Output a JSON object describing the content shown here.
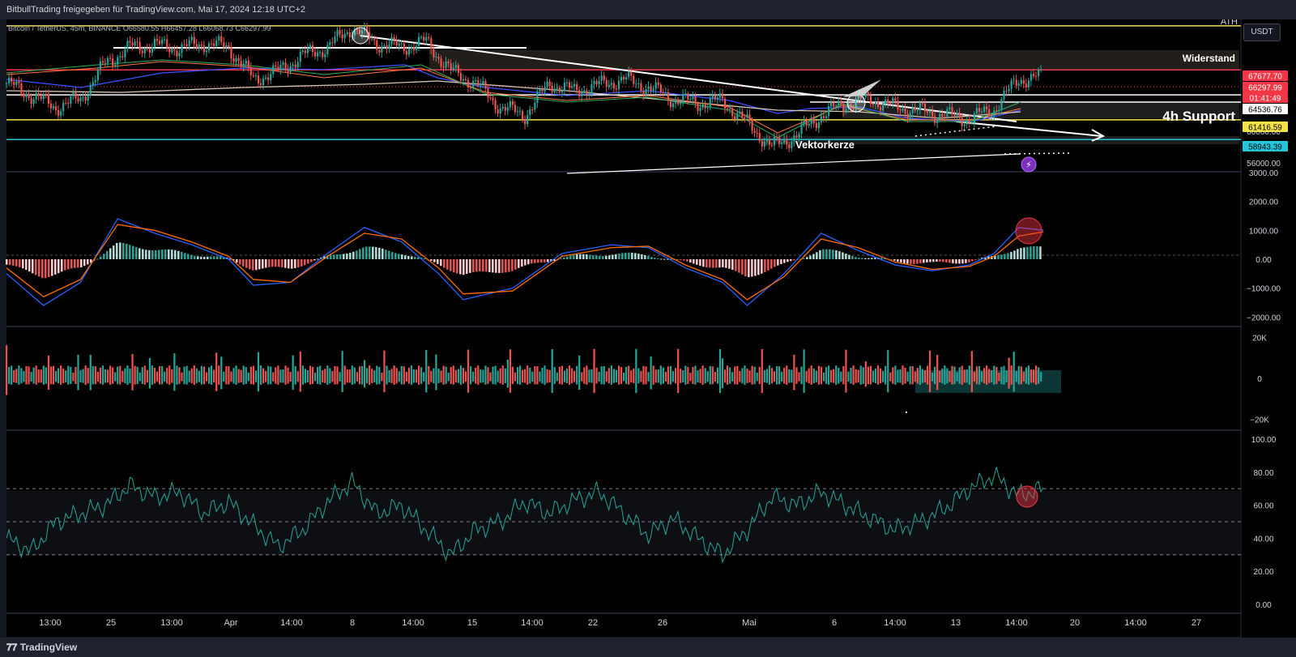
{
  "header": {
    "share_text": "BitbullTrading freigegeben für TradingView.com, Mai 17, 2024 12:18 UTC+2"
  },
  "footer": {
    "brand": "TradingView"
  },
  "currency_button": "USDT",
  "chart_data": [
    {
      "type": "line",
      "panel": "price",
      "legend_text": "Bitcoin / TetherUS, 45m, BINANCE  O66580.55  H66457.28  L66068.73  C66297.99",
      "ylim": [
        55000,
        74000
      ],
      "y_ticks": [
        56000,
        60000,
        72000
      ],
      "x_tick_labels": [
        "13:00",
        "25",
        "13:00",
        "Apr",
        "14:00",
        "8",
        "14:00",
        "15",
        "14:00",
        "22",
        "26",
        "Mai",
        "6",
        "14:00",
        "13",
        "14:00",
        "20",
        "14:00",
        "27"
      ],
      "annotations": [
        "ATH",
        "Widerstand",
        "4h Support",
        "Vektorkerze"
      ],
      "price_labels": [
        {
          "value": "67677.70",
          "color": "#f23645",
          "text_color": "#ffffff"
        },
        {
          "value": "66297.99",
          "color": "#f23645",
          "text_color": "#ffffff"
        },
        {
          "value": "01:41:49",
          "color": "#f23645",
          "text_color": "#ffffff"
        },
        {
          "value": "64536.76",
          "color": "#ffffff",
          "text_color": "#000000"
        },
        {
          "value": "61416.59",
          "color": "#f5e14a",
          "text_color": "#000000"
        },
        {
          "value": "58943.39",
          "color": "#26c6da",
          "text_color": "#000000"
        }
      ],
      "horizontal_levels": [
        {
          "value": 73200,
          "color": "#f5e14a"
        },
        {
          "value": 67677.7,
          "color": "#f23645"
        },
        {
          "value": 64536.76,
          "color": "#ffffff"
        },
        {
          "value": 61416.59,
          "color": "#f5e14a"
        },
        {
          "value": 58943.39,
          "color": "#26c6da"
        }
      ],
      "price_path": [
        [
          0,
          66000
        ],
        [
          0.02,
          64500
        ],
        [
          0.04,
          63000
        ],
        [
          0.06,
          64000
        ],
        [
          0.08,
          68500
        ],
        [
          0.1,
          70500
        ],
        [
          0.12,
          70800
        ],
        [
          0.14,
          70400
        ],
        [
          0.16,
          71000
        ],
        [
          0.18,
          70500
        ],
        [
          0.2,
          66500
        ],
        [
          0.22,
          67500
        ],
        [
          0.24,
          69500
        ],
        [
          0.26,
          70500
        ],
        [
          0.28,
          73000
        ],
        [
          0.3,
          71000
        ],
        [
          0.32,
          70500
        ],
        [
          0.34,
          71200
        ],
        [
          0.36,
          67500
        ],
        [
          0.38,
          66000
        ],
        [
          0.4,
          63000
        ],
        [
          0.42,
          62000
        ],
        [
          0.44,
          66000
        ],
        [
          0.46,
          65000
        ],
        [
          0.48,
          65800
        ],
        [
          0.5,
          66500
        ],
        [
          0.52,
          65500
        ],
        [
          0.54,
          64000
        ],
        [
          0.56,
          63500
        ],
        [
          0.58,
          63800
        ],
        [
          0.6,
          61000
        ],
        [
          0.62,
          58000
        ],
        [
          0.64,
          59500
        ],
        [
          0.66,
          62000
        ],
        [
          0.68,
          63500
        ],
        [
          0.7,
          64000
        ],
        [
          0.72,
          63000
        ],
        [
          0.74,
          62500
        ],
        [
          0.76,
          62000
        ],
        [
          0.78,
          61500
        ],
        [
          0.8,
          62800
        ],
        [
          0.82,
          66500
        ],
        [
          0.84,
          66800
        ]
      ]
    },
    {
      "type": "line",
      "panel": "macd",
      "ylim": [
        -2300,
        3000
      ],
      "y_ticks": [
        3000,
        2000,
        1000,
        0,
        -1000,
        -2000
      ],
      "y_tick_labels": [
        "3000.00",
        "2000.00",
        "1000.00",
        "0.00",
        "−1000.00",
        "−2000.00"
      ],
      "series": [
        {
          "values": [
            [
              0,
              -500
            ],
            [
              0.03,
              -1600
            ],
            [
              0.06,
              -800
            ],
            [
              0.09,
              1400
            ],
            [
              0.12,
              900
            ],
            [
              0.15,
              500
            ],
            [
              0.18,
              0
            ],
            [
              0.2,
              -900
            ],
            [
              0.23,
              -800
            ],
            [
              0.26,
              200
            ],
            [
              0.29,
              1100
            ],
            [
              0.32,
              600
            ],
            [
              0.35,
              -500
            ],
            [
              0.37,
              -1400
            ],
            [
              0.41,
              -1000
            ],
            [
              0.45,
              200
            ],
            [
              0.49,
              500
            ],
            [
              0.52,
              400
            ],
            [
              0.55,
              -300
            ],
            [
              0.58,
              -800
            ],
            [
              0.6,
              -1600
            ],
            [
              0.63,
              -500
            ],
            [
              0.66,
              900
            ],
            [
              0.69,
              300
            ],
            [
              0.72,
              -200
            ],
            [
              0.75,
              -400
            ],
            [
              0.78,
              -200
            ],
            [
              0.8,
              200
            ],
            [
              0.82,
              1100
            ],
            [
              0.84,
              1000
            ]
          ]
        },
        {
          "values": [
            [
              0,
              -300
            ],
            [
              0.03,
              -1300
            ],
            [
              0.06,
              -700
            ],
            [
              0.09,
              1200
            ],
            [
              0.12,
              1000
            ],
            [
              0.15,
              600
            ],
            [
              0.18,
              100
            ],
            [
              0.2,
              -700
            ],
            [
              0.23,
              -800
            ],
            [
              0.26,
              100
            ],
            [
              0.29,
              900
            ],
            [
              0.32,
              700
            ],
            [
              0.35,
              -300
            ],
            [
              0.37,
              -1200
            ],
            [
              0.41,
              -1100
            ],
            [
              0.45,
              100
            ],
            [
              0.49,
              400
            ],
            [
              0.52,
              450
            ],
            [
              0.55,
              -200
            ],
            [
              0.58,
              -700
            ],
            [
              0.6,
              -1400
            ],
            [
              0.63,
              -600
            ],
            [
              0.66,
              700
            ],
            [
              0.69,
              400
            ],
            [
              0.72,
              -100
            ],
            [
              0.75,
              -350
            ],
            [
              0.78,
              -250
            ],
            [
              0.8,
              100
            ],
            [
              0.82,
              800
            ],
            [
              0.84,
              950
            ]
          ]
        }
      ]
    },
    {
      "type": "bar",
      "panel": "volume-delta",
      "ylim": [
        -25000,
        25000
      ],
      "y_ticks": [
        20000,
        0,
        -20000
      ],
      "y_tick_labels": [
        "20K",
        "0",
        "−20K"
      ]
    },
    {
      "type": "line",
      "panel": "rsi",
      "ylim": [
        -5,
        105
      ],
      "y_ticks": [
        100,
        80,
        60,
        40,
        20,
        0
      ],
      "y_tick_labels": [
        "100.00",
        "80.00",
        "60.00",
        "40.00",
        "20.00",
        "0.00"
      ],
      "bands": [
        70,
        50,
        30
      ],
      "series": [
        {
          "values": [
            [
              0,
              40
            ],
            [
              0.02,
              32
            ],
            [
              0.04,
              50
            ],
            [
              0.06,
              55
            ],
            [
              0.08,
              60
            ],
            [
              0.1,
              72
            ],
            [
              0.12,
              65
            ],
            [
              0.14,
              68
            ],
            [
              0.16,
              55
            ],
            [
              0.18,
              62
            ],
            [
              0.2,
              48
            ],
            [
              0.22,
              35
            ],
            [
              0.24,
              45
            ],
            [
              0.26,
              62
            ],
            [
              0.28,
              74
            ],
            [
              0.3,
              55
            ],
            [
              0.32,
              60
            ],
            [
              0.34,
              45
            ],
            [
              0.36,
              30
            ],
            [
              0.38,
              45
            ],
            [
              0.4,
              50
            ],
            [
              0.42,
              62
            ],
            [
              0.44,
              55
            ],
            [
              0.46,
              63
            ],
            [
              0.48,
              68
            ],
            [
              0.5,
              55
            ],
            [
              0.52,
              42
            ],
            [
              0.54,
              52
            ],
            [
              0.56,
              40
            ],
            [
              0.58,
              30
            ],
            [
              0.6,
              45
            ],
            [
              0.62,
              65
            ],
            [
              0.64,
              60
            ],
            [
              0.66,
              68
            ],
            [
              0.68,
              60
            ],
            [
              0.7,
              52
            ],
            [
              0.72,
              45
            ],
            [
              0.74,
              50
            ],
            [
              0.76,
              58
            ],
            [
              0.78,
              70
            ],
            [
              0.8,
              78
            ],
            [
              0.82,
              66
            ],
            [
              0.84,
              70
            ]
          ]
        }
      ]
    }
  ]
}
